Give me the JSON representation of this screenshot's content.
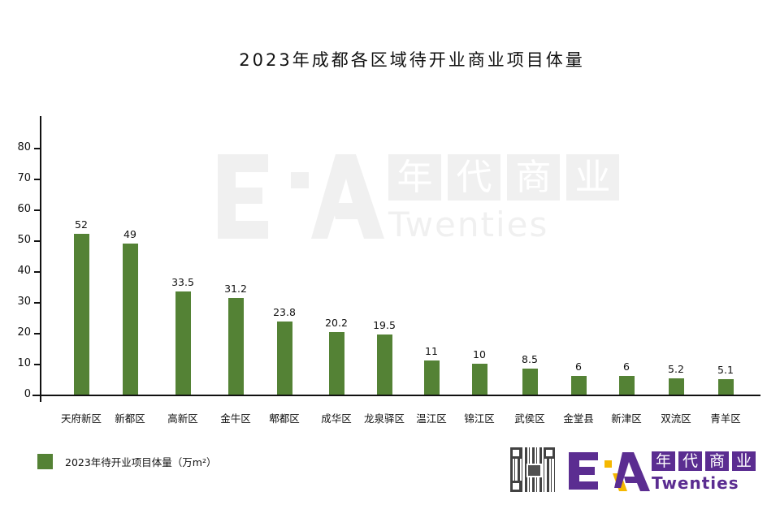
{
  "title": "2023年成都各区域待开业商业项目体量",
  "legend": {
    "label": "2023年待开业项目体量（万m²）",
    "color": "#548235"
  },
  "watermark": {
    "cn_chars": [
      "年",
      "代",
      "商",
      "业"
    ],
    "en": "Twenties"
  },
  "logo": {
    "cn_chars": [
      "年",
      "代",
      "商",
      "业"
    ],
    "en": "Twenties",
    "color": "#5b2d91",
    "accent": "#f5b800"
  },
  "y_ticks": [
    "0",
    "10",
    "20",
    "30",
    "40",
    "50",
    "60",
    "70",
    "80"
  ],
  "bars": [
    {
      "category": "天府新区",
      "value": 52,
      "label": "52"
    },
    {
      "category": "新都区",
      "value": 49,
      "label": "49"
    },
    {
      "category": "高新区",
      "value": 33.5,
      "label": "33.5"
    },
    {
      "category": "金牛区",
      "value": 31.2,
      "label": "31.2"
    },
    {
      "category": "郫都区",
      "value": 23.8,
      "label": "23.8"
    },
    {
      "category": "成华区",
      "value": 20.2,
      "label": "20.2"
    },
    {
      "category": "龙泉驿区",
      "value": 19.5,
      "label": "19.5"
    },
    {
      "category": "温江区",
      "value": 11,
      "label": "11"
    },
    {
      "category": "锦江区",
      "value": 10,
      "label": "10"
    },
    {
      "category": "武侯区",
      "value": 8.5,
      "label": "8.5"
    },
    {
      "category": "金堂县",
      "value": 6,
      "label": "6"
    },
    {
      "category": "新津区",
      "value": 6,
      "label": "6"
    },
    {
      "category": "双流区",
      "value": 5.2,
      "label": "5.2"
    },
    {
      "category": "青羊区",
      "value": 5.1,
      "label": "5.1"
    }
  ],
  "chart_data": {
    "type": "bar",
    "title": "2023年成都各区域待开业商业项目体量",
    "categories": [
      "天府新区",
      "新都区",
      "高新区",
      "金牛区",
      "郫都区",
      "成华区",
      "龙泉驿区",
      "温江区",
      "锦江区",
      "武侯区",
      "金堂县",
      "新津区",
      "双流区",
      "青羊区"
    ],
    "series": [
      {
        "name": "2023年待开业项目体量（万m²）",
        "values": [
          52,
          49,
          33.5,
          31.2,
          23.8,
          20.2,
          19.5,
          11,
          10,
          8.5,
          6,
          6,
          5.2,
          5.1
        ],
        "color": "#548235"
      }
    ],
    "xlabel": "",
    "ylabel": "",
    "ylim": [
      0,
      90
    ],
    "yticks": [
      0,
      10,
      20,
      30,
      40,
      50,
      60,
      70,
      80
    ],
    "grid": false,
    "data_labels": true,
    "legend_position": "bottom-left"
  }
}
